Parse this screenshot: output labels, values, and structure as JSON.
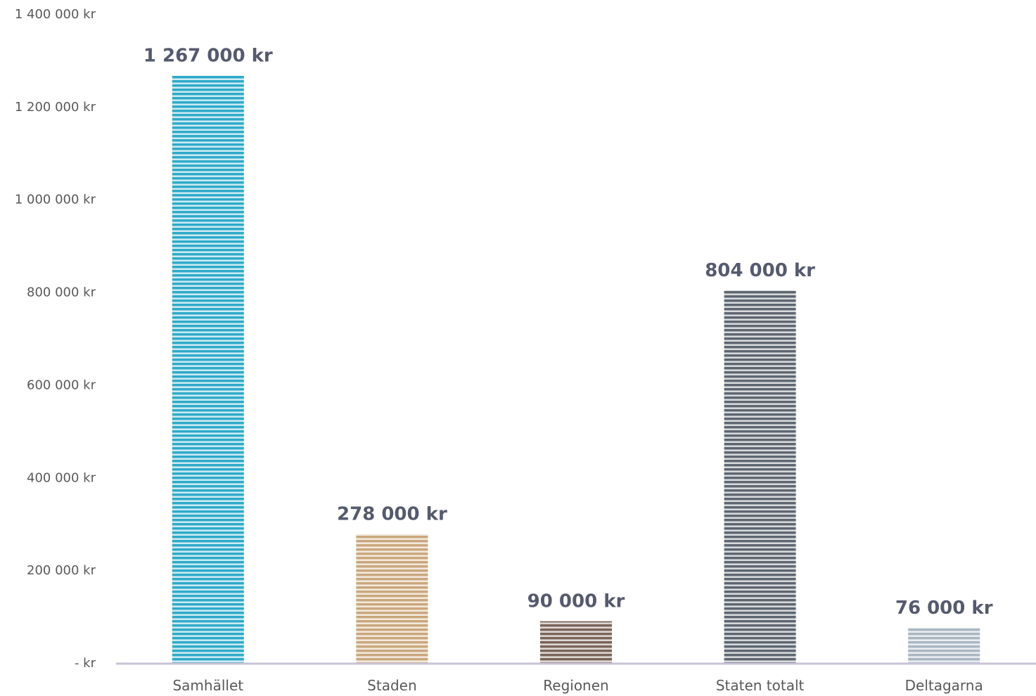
{
  "chart_data": {
    "type": "bar",
    "categories": [
      "Samhället",
      "Staden",
      "Regionen",
      "Staten totalt",
      "Deltagarna"
    ],
    "values": [
      1267000,
      278000,
      90000,
      804000,
      76000
    ],
    "data_labels": [
      "1 267 000 kr",
      "278 000 kr",
      "90 000 kr",
      "804 000 kr",
      "76 000 kr"
    ],
    "y_ticks": [
      {
        "value": 0,
        "label": "-   kr"
      },
      {
        "value": 200000,
        "label": "200 000 kr"
      },
      {
        "value": 400000,
        "label": "400 000 kr"
      },
      {
        "value": 600000,
        "label": "600 000 kr"
      },
      {
        "value": 800000,
        "label": "800 000 kr"
      },
      {
        "value": 1000000,
        "label": "1 000 000 kr"
      },
      {
        "value": 1200000,
        "label": "1 200 000 kr"
      },
      {
        "value": 1400000,
        "label": "1 400 000 kr"
      }
    ],
    "ylim": [
      0,
      1400000
    ],
    "grid": false,
    "legend": "none",
    "colors": [
      "#2eaac9",
      "#c9a77c",
      "#7a6458",
      "#5e6670",
      "#a9b6c2"
    ],
    "axis_color": "#c9c3d6"
  }
}
